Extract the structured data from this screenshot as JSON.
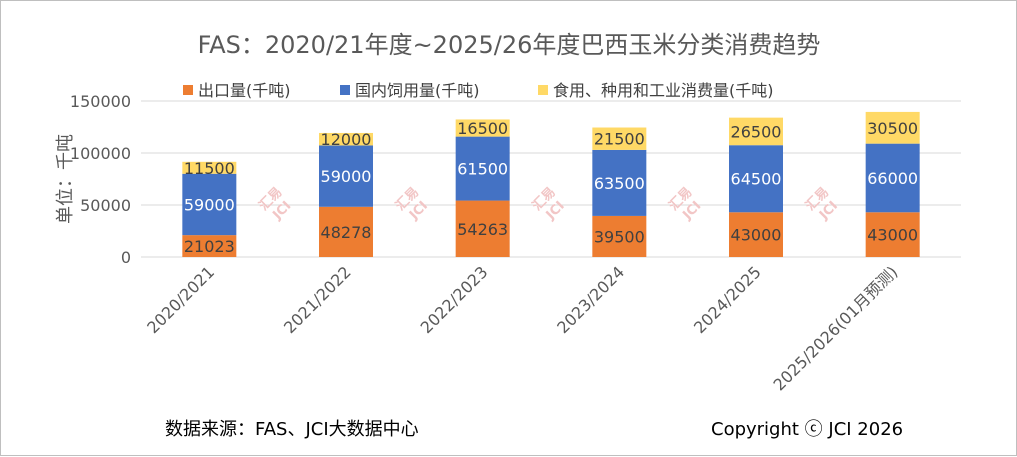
{
  "chart_data": {
    "type": "bar",
    "stacked": true,
    "title": "FAS：2020/21年度~2025/26年度巴西玉米分类消费趋势",
    "ylabel": "单位：千吨",
    "xlabel": "",
    "ylim": [
      0,
      150000
    ],
    "yticks": [
      "0",
      "50000",
      "100000",
      "150000"
    ],
    "ytick_values": [
      0,
      50000,
      100000,
      150000
    ],
    "grid": true,
    "legend_position": "top",
    "categories": [
      "2020/2021",
      "2021/2022",
      "2022/2023",
      "2023/2024",
      "2024/2025",
      "2025/2026(01月预测)"
    ],
    "series": [
      {
        "name": "出口量(千吨)",
        "color": "#ed7d31",
        "label_color": "#404040",
        "values": [
          21023,
          48278,
          54263,
          39500,
          43000,
          43000
        ]
      },
      {
        "name": "国内饲用量(千吨)",
        "color": "#4472c4",
        "label_color": "#ffffff",
        "values": [
          59000,
          59000,
          61500,
          63500,
          64500,
          66000
        ]
      },
      {
        "name": "食用、种用和工业消费量(千吨)",
        "color": "#ffd966",
        "label_color": "#404040",
        "values": [
          11500,
          12000,
          16500,
          21500,
          26500,
          30500
        ]
      }
    ]
  },
  "footer": {
    "source": "数据来源：FAS、JCI大数据中心",
    "copyright": "Copyright ⓒ JCI 2026"
  },
  "watermark": {
    "line1": "汇易",
    "line2": "JCI"
  },
  "colors": {
    "grid": "#d9d9d9",
    "axis": "#d9d9d9"
  }
}
